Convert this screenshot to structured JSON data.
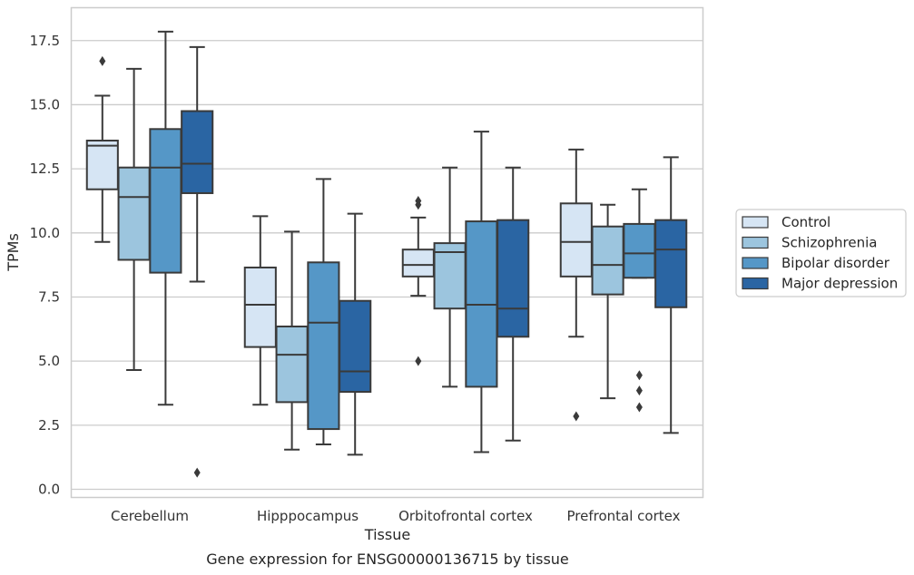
{
  "chart_data": {
    "type": "box",
    "title": "Gene expression for ENSG00000136715 by tissue",
    "xlabel": "Tissue",
    "ylabel": "TPMs",
    "ylim": [
      -0.3,
      18.8
    ],
    "yticks": [
      0.0,
      2.5,
      5.0,
      7.5,
      10.0,
      12.5,
      15.0,
      17.5
    ],
    "ytick_labels": [
      "0.0",
      "2.5",
      "5.0",
      "7.5",
      "10.0",
      "12.5",
      "15.0",
      "17.5"
    ],
    "grid": "horizontal",
    "legend_position": "right",
    "categories": [
      "Cerebellum",
      "Hipppocampus",
      "Orbitofrontal cortex",
      "Prefrontal cortex"
    ],
    "series": [
      {
        "name": "Control",
        "color": "#d6e5f4",
        "boxes": [
          {
            "whislo": 9.65,
            "q1": 11.7,
            "med": 13.4,
            "q3": 13.6,
            "whishi": 15.35,
            "fliers": [
              16.7
            ]
          },
          {
            "whislo": 3.3,
            "q1": 5.55,
            "med": 7.2,
            "q3": 8.65,
            "whishi": 10.65,
            "fliers": []
          },
          {
            "whislo": 7.55,
            "q1": 8.3,
            "med": 8.75,
            "q3": 9.35,
            "whishi": 10.6,
            "fliers": [
              5.0,
              11.1,
              11.25
            ]
          },
          {
            "whislo": 5.95,
            "q1": 8.3,
            "med": 9.65,
            "q3": 11.15,
            "whishi": 13.25,
            "fliers": [
              2.85
            ]
          }
        ]
      },
      {
        "name": "Schizophrenia",
        "color": "#9cc5de",
        "boxes": [
          {
            "whislo": 4.65,
            "q1": 8.95,
            "med": 11.4,
            "q3": 12.55,
            "whishi": 16.4,
            "fliers": []
          },
          {
            "whislo": 1.55,
            "q1": 3.4,
            "med": 5.25,
            "q3": 6.35,
            "whishi": 10.05,
            "fliers": []
          },
          {
            "whislo": 4.0,
            "q1": 7.05,
            "med": 9.25,
            "q3": 9.6,
            "whishi": 12.55,
            "fliers": []
          },
          {
            "whislo": 3.55,
            "q1": 7.6,
            "med": 8.75,
            "q3": 10.25,
            "whishi": 11.1,
            "fliers": []
          }
        ]
      },
      {
        "name": "Bipolar disorder",
        "color": "#5597c7",
        "boxes": [
          {
            "whislo": 3.3,
            "q1": 8.45,
            "med": 12.55,
            "q3": 14.05,
            "whishi": 17.85,
            "fliers": []
          },
          {
            "whislo": 1.75,
            "q1": 2.35,
            "med": 6.5,
            "q3": 8.85,
            "whishi": 12.1,
            "fliers": []
          },
          {
            "whislo": 1.45,
            "q1": 4.0,
            "med": 7.2,
            "q3": 10.45,
            "whishi": 13.95,
            "fliers": []
          },
          {
            "whislo": 8.25,
            "q1": 8.25,
            "med": 9.2,
            "q3": 10.35,
            "whishi": 11.7,
            "fliers": [
              3.2,
              3.85,
              4.45
            ]
          }
        ]
      },
      {
        "name": "Major depression",
        "color": "#2a65a3",
        "boxes": [
          {
            "whislo": 8.1,
            "q1": 11.55,
            "med": 12.7,
            "q3": 14.75,
            "whishi": 17.25,
            "fliers": [
              0.65
            ]
          },
          {
            "whislo": 1.35,
            "q1": 3.8,
            "med": 4.6,
            "q3": 7.35,
            "whishi": 10.75,
            "fliers": []
          },
          {
            "whislo": 1.9,
            "q1": 5.95,
            "med": 7.05,
            "q3": 10.5,
            "whishi": 12.55,
            "fliers": []
          },
          {
            "whislo": 2.2,
            "q1": 7.1,
            "med": 9.35,
            "q3": 10.5,
            "whishi": 12.95,
            "fliers": []
          }
        ]
      }
    ]
  },
  "colors": {
    "edge": "#3a3a3a",
    "grid": "#cccccc",
    "frame": "#cccccc"
  }
}
